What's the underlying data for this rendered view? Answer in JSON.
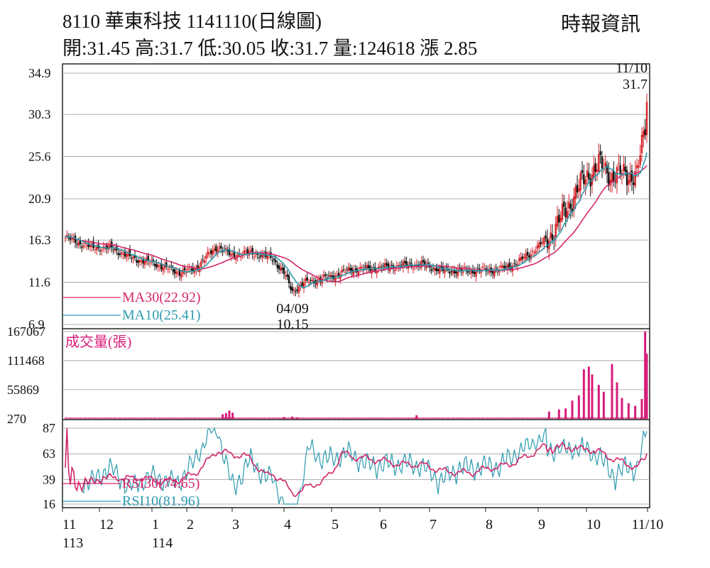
{
  "header": {
    "title": "8110  華東科技 1141110(日線圖)",
    "subtitle": "開:31.45 高:31.7 低:30.05 收:31.7 量:124618 漲 2.85",
    "source": "時報資訊"
  },
  "colors": {
    "up": "#d6242a",
    "down": "#111111",
    "ma30": "#d3276b",
    "ma10": "#2e9bb0",
    "volume": "#d81b7a",
    "rsi30": "#d3276b",
    "rsi10": "#2e9bb0",
    "grid": "#999999"
  },
  "chart_data": [
    {
      "type": "candlestick",
      "name": "price",
      "y_ticks": [
        "34.9",
        "30.3",
        "25.6",
        "20.9",
        "16.3",
        "11.6",
        "6.9"
      ],
      "ylim": [
        6.9,
        34.9
      ],
      "x_ticks": [
        "11",
        "12",
        "1",
        "2",
        "3",
        "4",
        "5",
        "6",
        "7",
        "8",
        "9",
        "10",
        "11/10"
      ],
      "x_ticks_year": [
        "113",
        "114"
      ],
      "annotations": [
        {
          "label_date": "11/10",
          "label_value": "31.7"
        },
        {
          "label_date": "04/09",
          "label_value": "10.15"
        }
      ],
      "legend": [
        {
          "name": "MA30(22.92)",
          "color": "#d3276b"
        },
        {
          "name": "MA10(25.41)",
          "color": "#2e9bb0"
        }
      ],
      "ohlc_anchors": [
        {
          "d": 0,
          "c": 16.6
        },
        {
          "d": 15,
          "c": 15.5
        },
        {
          "d": 28,
          "c": 15.4
        },
        {
          "d": 40,
          "c": 14.3
        },
        {
          "d": 55,
          "c": 13.6
        },
        {
          "d": 68,
          "c": 12.7
        },
        {
          "d": 78,
          "c": 13.0
        },
        {
          "d": 85,
          "c": 14.4
        },
        {
          "d": 92,
          "c": 15.6
        },
        {
          "d": 100,
          "c": 14.6
        },
        {
          "d": 112,
          "c": 14.9
        },
        {
          "d": 125,
          "c": 14.3
        },
        {
          "d": 132,
          "c": 12.6
        },
        {
          "d": 137,
          "c": 10.6
        },
        {
          "d": 145,
          "c": 11.6
        },
        {
          "d": 160,
          "c": 12.2
        },
        {
          "d": 172,
          "c": 13.0
        },
        {
          "d": 188,
          "c": 13.2
        },
        {
          "d": 205,
          "c": 13.5
        },
        {
          "d": 215,
          "c": 13.6
        },
        {
          "d": 228,
          "c": 12.9
        },
        {
          "d": 245,
          "c": 12.9
        },
        {
          "d": 262,
          "c": 13.0
        },
        {
          "d": 272,
          "c": 13.7
        },
        {
          "d": 282,
          "c": 15.0
        },
        {
          "d": 292,
          "c": 16.7
        },
        {
          "d": 300,
          "c": 18.9
        },
        {
          "d": 308,
          "c": 21.6
        },
        {
          "d": 315,
          "c": 23.5
        },
        {
          "d": 322,
          "c": 24.7
        },
        {
          "d": 330,
          "c": 23.5
        },
        {
          "d": 338,
          "c": 23.7
        },
        {
          "d": 345,
          "c": 23.5
        },
        {
          "d": 350,
          "c": 28.9
        },
        {
          "d": 351,
          "c": 31.7
        }
      ]
    },
    {
      "type": "bar",
      "name": "volume",
      "title": "成交量(張)",
      "y_ticks": [
        "167067",
        "111468",
        "55869",
        "270"
      ],
      "ylim": [
        270,
        167067
      ],
      "bars": [
        {
          "d": 95,
          "v": 9000
        },
        {
          "d": 97,
          "v": 11000
        },
        {
          "d": 99,
          "v": 16000
        },
        {
          "d": 101,
          "v": 12000
        },
        {
          "d": 132,
          "v": 3500
        },
        {
          "d": 137,
          "v": 4500
        },
        {
          "d": 140,
          "v": 3000
        },
        {
          "d": 212,
          "v": 7000
        },
        {
          "d": 292,
          "v": 14000
        },
        {
          "d": 298,
          "v": 18000
        },
        {
          "d": 302,
          "v": 20000
        },
        {
          "d": 306,
          "v": 35000
        },
        {
          "d": 310,
          "v": 45000
        },
        {
          "d": 313,
          "v": 95000
        },
        {
          "d": 316,
          "v": 100000
        },
        {
          "d": 318,
          "v": 85000
        },
        {
          "d": 322,
          "v": 65000
        },
        {
          "d": 325,
          "v": 52000
        },
        {
          "d": 330,
          "v": 105000
        },
        {
          "d": 333,
          "v": 70000
        },
        {
          "d": 336,
          "v": 40000
        },
        {
          "d": 340,
          "v": 30000
        },
        {
          "d": 344,
          "v": 25000
        },
        {
          "d": 348,
          "v": 38000
        },
        {
          "d": 350,
          "v": 167067
        },
        {
          "d": 351,
          "v": 124618
        }
      ]
    },
    {
      "type": "line",
      "name": "rsi",
      "y_ticks": [
        "87",
        "63",
        "39",
        "16"
      ],
      "ylim": [
        16,
        87
      ],
      "legend": [
        {
          "name": "RSI30(74.65)",
          "color": "#d3276b"
        },
        {
          "name": "RSI10(81.96)",
          "color": "#2e9bb0"
        }
      ]
    }
  ]
}
